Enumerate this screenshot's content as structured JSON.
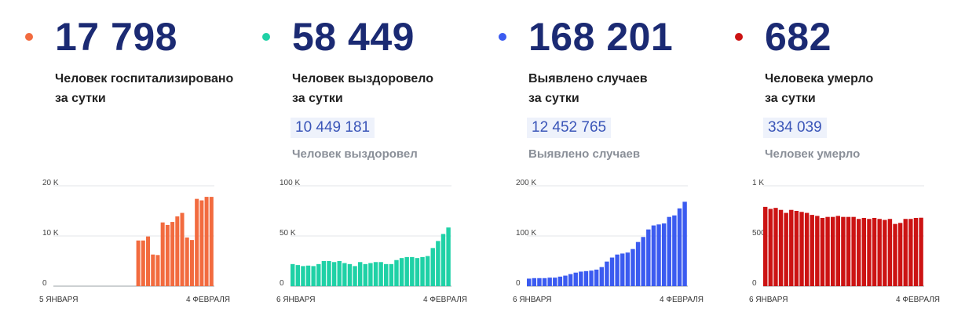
{
  "panels": [
    {
      "id": "hospitalized",
      "number": "17 798",
      "desc_line1": "Человек госпитализировано",
      "desc_line2": "за сутки",
      "total": "",
      "total_label": "",
      "color": "#f26b3f",
      "dot_color": "#f26b3f"
    },
    {
      "id": "recovered",
      "number": "58 449",
      "desc_line1": "Человек выздоровело",
      "desc_line2": "за сутки",
      "total": "10 449 181",
      "total_label": "Человек выздоровел",
      "color": "#1fd1a6",
      "dot_color": "#1fd1a6"
    },
    {
      "id": "cases",
      "number": "168 201",
      "desc_line1": "Выявлено случаев",
      "desc_line2": "за сутки",
      "total": "12 452 765",
      "total_label": "Выявлено случаев",
      "color": "#3b5bf0",
      "dot_color": "#3b5bf0"
    },
    {
      "id": "deaths",
      "number": "682",
      "desc_line1": "Человека умерло",
      "desc_line2": "за сутки",
      "total": "334 039",
      "total_label": "Человек умерло",
      "color": "#cc1313",
      "dot_color": "#cc1313"
    }
  ],
  "chart_data": [
    {
      "type": "bar",
      "series_id": "hospitalized",
      "x_start_label": "5 ЯНВАРЯ",
      "x_end_label": "4 ФЕВРАЛЯ",
      "y_ticks": [
        "0",
        "10 K",
        "20 K"
      ],
      "y_tick_values": [
        0,
        10000,
        20000
      ],
      "ylim": [
        0,
        20000
      ],
      "values": [
        null,
        null,
        null,
        null,
        null,
        null,
        null,
        null,
        null,
        null,
        null,
        null,
        null,
        null,
        null,
        null,
        null,
        9100,
        9100,
        9900,
        6300,
        6200,
        12700,
        12200,
        12800,
        13900,
        14600,
        9700,
        9200,
        17400,
        17100,
        17800,
        17798
      ]
    },
    {
      "type": "bar",
      "series_id": "recovered",
      "x_start_label": "6 ЯНВАРЯ",
      "x_end_label": "4 ФЕВРАЛЯ",
      "y_ticks": [
        "0",
        "50 K",
        "100 K"
      ],
      "y_tick_values": [
        0,
        50000,
        100000
      ],
      "ylim": [
        0,
        100000
      ],
      "values": [
        22000,
        21000,
        20000,
        20500,
        20000,
        22000,
        25000,
        25000,
        24000,
        25000,
        23000,
        22000,
        20000,
        24000,
        22000,
        23000,
        24000,
        24000,
        22000,
        22000,
        26000,
        28000,
        29000,
        29000,
        28000,
        29000,
        30000,
        38000,
        45000,
        52000,
        58449
      ]
    },
    {
      "type": "bar",
      "series_id": "cases",
      "x_start_label": "6 ЯНВАРЯ",
      "x_end_label": "4 ФЕВРАЛЯ",
      "y_ticks": [
        "0",
        "100 K",
        "200 K"
      ],
      "y_tick_values": [
        0,
        100000,
        200000
      ],
      "ylim": [
        0,
        200000
      ],
      "values": [
        15000,
        16000,
        16000,
        16000,
        17000,
        17000,
        19000,
        21000,
        24000,
        27000,
        29000,
        30000,
        31000,
        33000,
        38000,
        49000,
        57000,
        63000,
        65000,
        67000,
        74000,
        88000,
        98000,
        113000,
        121000,
        123000,
        125000,
        138000,
        141000,
        155000,
        168201
      ]
    },
    {
      "type": "bar",
      "series_id": "deaths",
      "x_start_label": "6 ЯНВАРЯ",
      "x_end_label": "4 ФЕВРАЛЯ",
      "y_ticks": [
        "0",
        "500",
        "1 K"
      ],
      "y_tick_values": [
        0,
        500,
        1000
      ],
      "ylim": [
        0,
        1000
      ],
      "values": [
        790,
        770,
        780,
        760,
        730,
        760,
        750,
        740,
        730,
        710,
        700,
        680,
        690,
        690,
        700,
        690,
        690,
        690,
        670,
        680,
        670,
        680,
        670,
        660,
        670,
        620,
        630,
        670,
        670,
        680,
        682
      ]
    }
  ]
}
